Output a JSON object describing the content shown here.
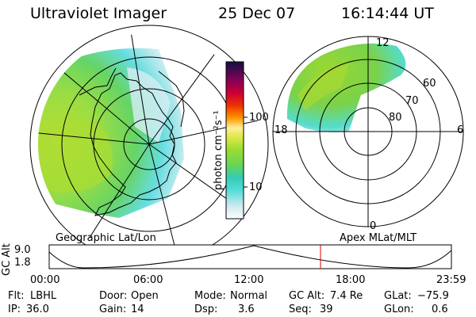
{
  "header": {
    "title": "Ultraviolet Imager",
    "date": "25 Dec 07",
    "time": "16:14:44 UT"
  },
  "colorbar": {
    "unit_label": "photon cm⁻²s⁻¹",
    "ticks": [
      "100",
      "10"
    ]
  },
  "left_map": {
    "caption": "Geographic Lat/Lon"
  },
  "right_map": {
    "caption": "Apex MLat/MLT",
    "mlt_labels": [
      "12",
      "18",
      "6",
      "0"
    ],
    "lat_labels": [
      "60",
      "70",
      "80"
    ]
  },
  "altitude_plot": {
    "ylabel": "GC Alt",
    "yticks": [
      "9.0",
      "1.8"
    ],
    "xticks": [
      "00:00",
      "06:00",
      "12:00",
      "18:00",
      "23:59"
    ]
  },
  "status": {
    "row1": [
      {
        "label": "Flt:",
        "value": "LBHL"
      },
      {
        "label": "Door:",
        "value": "Open"
      },
      {
        "label": "Mode:",
        "value": "Normal"
      },
      {
        "label": "GC Alt:",
        "value": "7.4 Re"
      },
      {
        "label": "GLat:",
        "value": "−75.9"
      }
    ],
    "row2": [
      {
        "label": "IP:",
        "value": "36.0"
      },
      {
        "label": "Gain:",
        "value": "14"
      },
      {
        "label": "Dsp:",
        "value": "3.6"
      },
      {
        "label": "Seq:",
        "value": "39"
      },
      {
        "label": "GLon:",
        "value": "0.6"
      }
    ]
  }
}
